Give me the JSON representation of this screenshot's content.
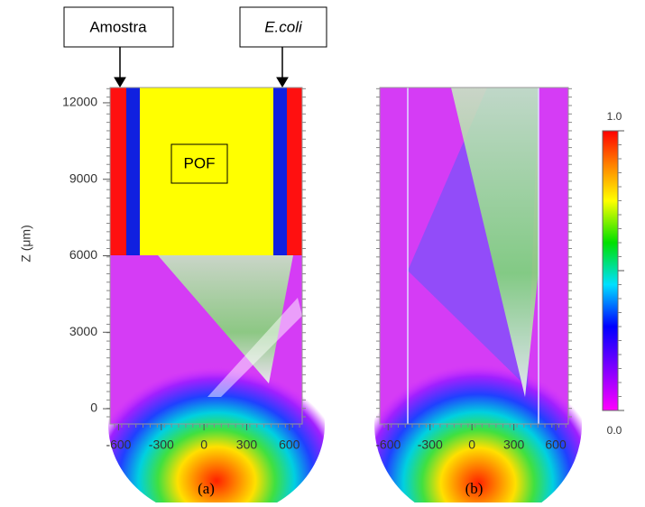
{
  "chart_data": [
    {
      "type": "heatmap",
      "xlim": [
        -660,
        690
      ],
      "ylim": [
        -600,
        12600
      ],
      "xticks": [
        -600,
        -300,
        0,
        300,
        600
      ],
      "yticks": [
        0,
        3000,
        6000,
        9000,
        12000
      ],
      "y_label": "Z (μm)",
      "caption": "(a)",
      "annotations": [
        "Amostra",
        "E.coli",
        "POF"
      ]
    },
    {
      "type": "heatmap",
      "xlim": [
        -660,
        690
      ],
      "ylim": [
        -600,
        12600
      ],
      "xticks": [
        -600,
        -300,
        0,
        300,
        600
      ],
      "caption": "(b)"
    }
  ],
  "colorbar": {
    "range": [
      0,
      1
    ],
    "ticks": [
      {
        "value": 0,
        "label": "0.0"
      },
      {
        "value": 1,
        "label": "1.0"
      }
    ]
  }
}
